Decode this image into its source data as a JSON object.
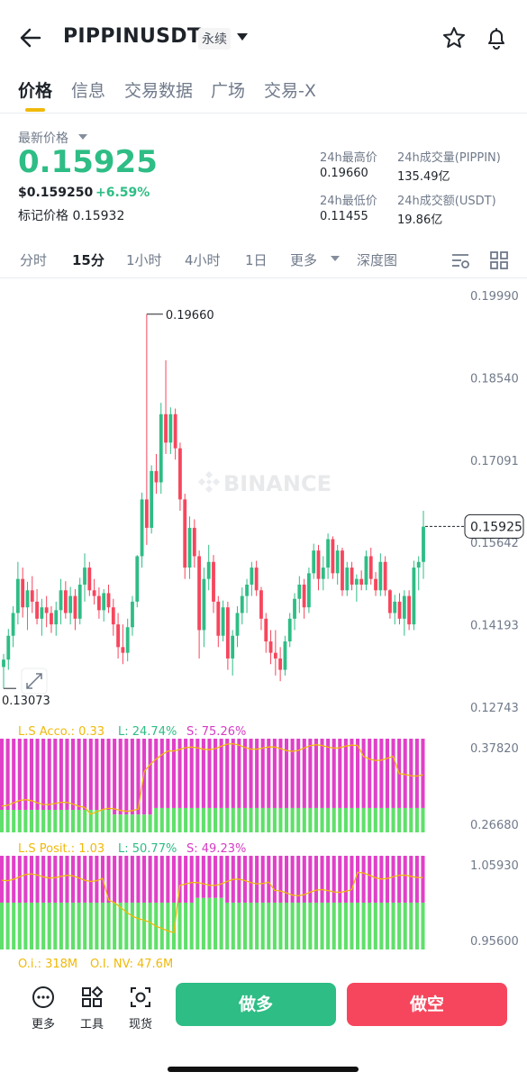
{
  "header": {
    "symbol": "PIPPINUSDT",
    "contract_type": "永续"
  },
  "tabs": [
    "价格",
    "信息",
    "交易数据",
    "广场",
    "交易-X"
  ],
  "price": {
    "label": "最新价格",
    "last": "0.15925",
    "usd": "$0.159250",
    "change": "+6.59%",
    "mark_label": "标记价格",
    "mark": "0.15932"
  },
  "stats": {
    "high_label": "24h最高价",
    "high": "0.19660",
    "low_label": "24h最低价",
    "low": "0.11455",
    "vol_label": "24h成交量(PIPPIN)",
    "vol": "135.49亿",
    "amt_label": "24h成交额(USDT)",
    "amt": "19.86亿"
  },
  "timeframes": [
    "分时",
    "15分",
    "1小时",
    "4小时",
    "1日",
    "更多",
    "深度图"
  ],
  "active_timeframe": "15分",
  "chart": {
    "y_axis": [
      "0.19990",
      "0.18540",
      "0.17091",
      "0.15642",
      "0.14193",
      "0.12743"
    ],
    "high_marker": "0.19660",
    "low_marker": "0.13073",
    "current": "0.15925",
    "watermark": "BINANCE",
    "ls_acc": {
      "label": "L.S Acco.: 0.33",
      "l": "L: 24.74%",
      "s": "S: 75.26%",
      "axis": [
        "0.37820",
        "0.26680"
      ]
    },
    "ls_pos": {
      "label": "L.S Posit.: 1.03",
      "l": "L: 50.77%",
      "s": "S: 49.23%",
      "axis": [
        "1.05930",
        "0.95600"
      ]
    },
    "oi": "O.i.: 318M",
    "oi_nv": "O.I. NV: 47.6M"
  },
  "chart_data": {
    "type": "candlestick",
    "ylim": [
      0.12743,
      0.1999
    ],
    "high": 0.1966,
    "low": 0.13073,
    "last": 0.15925,
    "ohlc": [
      [
        0.1345,
        0.1368,
        0.1307,
        0.1358
      ],
      [
        0.1358,
        0.1412,
        0.134,
        0.14
      ],
      [
        0.14,
        0.1452,
        0.138,
        0.144
      ],
      [
        0.144,
        0.153,
        0.142,
        0.15
      ],
      [
        0.15,
        0.152,
        0.1432,
        0.145
      ],
      [
        0.145,
        0.1495,
        0.141,
        0.148
      ],
      [
        0.148,
        0.1505,
        0.144,
        0.146
      ],
      [
        0.146,
        0.1482,
        0.142,
        0.143
      ],
      [
        0.143,
        0.1465,
        0.14,
        0.145
      ],
      [
        0.145,
        0.147,
        0.1415,
        0.144
      ],
      [
        0.144,
        0.1452,
        0.1405,
        0.142
      ],
      [
        0.142,
        0.146,
        0.14,
        0.1445
      ],
      [
        0.1445,
        0.15,
        0.142,
        0.148
      ],
      [
        0.148,
        0.1496,
        0.143,
        0.144
      ],
      [
        0.144,
        0.1486,
        0.142,
        0.147
      ],
      [
        0.147,
        0.1482,
        0.141,
        0.143
      ],
      [
        0.143,
        0.1502,
        0.142,
        0.149
      ],
      [
        0.149,
        0.1545,
        0.146,
        0.152
      ],
      [
        0.152,
        0.153,
        0.147,
        0.148
      ],
      [
        0.148,
        0.15,
        0.1455,
        0.147
      ],
      [
        0.147,
        0.1485,
        0.143,
        0.1445
      ],
      [
        0.1445,
        0.1482,
        0.1425,
        0.1475
      ],
      [
        0.1475,
        0.149,
        0.144,
        0.145
      ],
      [
        0.145,
        0.1465,
        0.14,
        0.142
      ],
      [
        0.142,
        0.144,
        0.136,
        0.138
      ],
      [
        0.138,
        0.142,
        0.135,
        0.137
      ],
      [
        0.137,
        0.143,
        0.1355,
        0.1415
      ],
      [
        0.1415,
        0.147,
        0.14,
        0.146
      ],
      [
        0.146,
        0.1542,
        0.145,
        0.154
      ],
      [
        0.154,
        0.1652,
        0.152,
        0.164
      ],
      [
        0.164,
        0.1966,
        0.156,
        0.159
      ],
      [
        0.159,
        0.17,
        0.158,
        0.169
      ],
      [
        0.169,
        0.172,
        0.165,
        0.167
      ],
      [
        0.167,
        0.181,
        0.165,
        0.179
      ],
      [
        0.179,
        0.1885,
        0.172,
        0.174
      ],
      [
        0.174,
        0.1802,
        0.172,
        0.179
      ],
      [
        0.179,
        0.18,
        0.171,
        0.173
      ],
      [
        0.173,
        0.174,
        0.162,
        0.164
      ],
      [
        0.164,
        0.165,
        0.15,
        0.152
      ],
      [
        0.152,
        0.161,
        0.15,
        0.159
      ],
      [
        0.159,
        0.1605,
        0.152,
        0.154
      ],
      [
        0.154,
        0.155,
        0.136,
        0.141
      ],
      [
        0.141,
        0.152,
        0.138,
        0.15
      ],
      [
        0.15,
        0.156,
        0.148,
        0.153
      ],
      [
        0.153,
        0.1542,
        0.144,
        0.146
      ],
      [
        0.146,
        0.147,
        0.138,
        0.14
      ],
      [
        0.14,
        0.1462,
        0.139,
        0.145
      ],
      [
        0.145,
        0.146,
        0.134,
        0.136
      ],
      [
        0.136,
        0.141,
        0.133,
        0.14
      ],
      [
        0.14,
        0.1452,
        0.138,
        0.144
      ],
      [
        0.144,
        0.1485,
        0.142,
        0.147
      ],
      [
        0.147,
        0.15,
        0.144,
        0.149
      ],
      [
        0.149,
        0.153,
        0.147,
        0.152
      ],
      [
        0.152,
        0.1532,
        0.147,
        0.148
      ],
      [
        0.148,
        0.1486,
        0.141,
        0.143
      ],
      [
        0.143,
        0.144,
        0.137,
        0.139
      ],
      [
        0.139,
        0.141,
        0.135,
        0.137
      ],
      [
        0.137,
        0.141,
        0.133,
        0.136
      ],
      [
        0.136,
        0.138,
        0.132,
        0.134
      ],
      [
        0.134,
        0.14,
        0.133,
        0.139
      ],
      [
        0.139,
        0.144,
        0.138,
        0.143
      ],
      [
        0.143,
        0.1475,
        0.141,
        0.1465
      ],
      [
        0.1465,
        0.1505,
        0.144,
        0.149
      ],
      [
        0.149,
        0.15,
        0.143,
        0.145
      ],
      [
        0.145,
        0.152,
        0.144,
        0.151
      ],
      [
        0.151,
        0.1562,
        0.15,
        0.155
      ],
      [
        0.155,
        0.156,
        0.148,
        0.15
      ],
      [
        0.15,
        0.154,
        0.148,
        0.152
      ],
      [
        0.152,
        0.158,
        0.15,
        0.157
      ],
      [
        0.157,
        0.1575,
        0.15,
        0.151
      ],
      [
        0.151,
        0.156,
        0.149,
        0.155
      ],
      [
        0.155,
        0.1555,
        0.147,
        0.148
      ],
      [
        0.148,
        0.153,
        0.147,
        0.152
      ],
      [
        0.152,
        0.153,
        0.148,
        0.149
      ],
      [
        0.149,
        0.1508,
        0.146,
        0.15
      ],
      [
        0.15,
        0.1515,
        0.148,
        0.149
      ],
      [
        0.149,
        0.155,
        0.148,
        0.154
      ],
      [
        0.154,
        0.1555,
        0.149,
        0.15
      ],
      [
        0.15,
        0.1512,
        0.147,
        0.148
      ],
      [
        0.148,
        0.1545,
        0.147,
        0.153
      ],
      [
        0.153,
        0.154,
        0.147,
        0.148
      ],
      [
        0.148,
        0.1482,
        0.143,
        0.144
      ],
      [
        0.144,
        0.1472,
        0.142,
        0.146
      ],
      [
        0.146,
        0.1475,
        0.142,
        0.143
      ],
      [
        0.143,
        0.148,
        0.14,
        0.147
      ],
      [
        0.147,
        0.148,
        0.141,
        0.142
      ],
      [
        0.142,
        0.1532,
        0.141,
        0.152
      ],
      [
        0.152,
        0.154,
        0.148,
        0.153
      ],
      [
        0.153,
        0.162,
        0.15,
        0.1592
      ]
    ],
    "ls_account": {
      "ylim": [
        0.2668,
        0.3782
      ],
      "long_pct": 24.74,
      "short_pct": 75.26,
      "ratio": 0.33
    },
    "ls_position": {
      "ylim": [
        0.956,
        1.0593
      ],
      "long_pct": 50.77,
      "short_pct": 49.23,
      "ratio": 1.03
    },
    "open_interest": "318M",
    "open_interest_nv": "47.6M",
    "colors": {
      "up": "#2ebd85",
      "down": "#f6465d",
      "short": "#e040c8",
      "long": "#5fe06a",
      "line": "#f0b90b"
    }
  },
  "bottom": {
    "more": "更多",
    "tools": "工具",
    "spot": "现货",
    "long": "做多",
    "short": "做空"
  }
}
